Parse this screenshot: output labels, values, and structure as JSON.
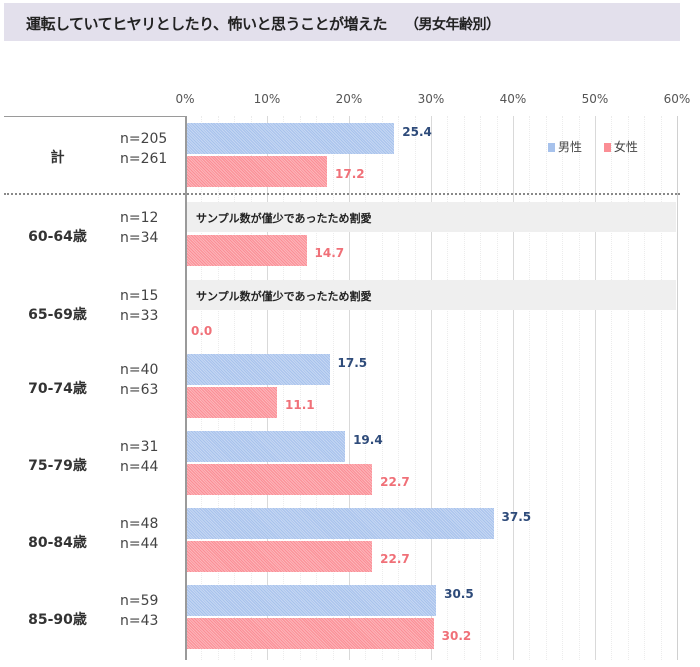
{
  "title": "運転していてヒヤリとしたり、怖いと思うことが増えた",
  "subtitle": "（男女年齢別）",
  "legend": [
    {
      "label": "男性",
      "color": "#a7c2ec"
    },
    {
      "label": "女性",
      "color": "#fb8e95"
    }
  ],
  "omit_note": "サンプル数が僅少であったため割愛",
  "chart_data": {
    "type": "bar",
    "orientation": "horizontal",
    "title": "運転していてヒヤリとしたり、怖いと思うことが増えた（男女年齢別）",
    "xlabel": "",
    "ylabel": "",
    "xlim": [
      0,
      60
    ],
    "x_ticks": [
      "0%",
      "10%",
      "20%",
      "30%",
      "40%",
      "50%",
      "60%"
    ],
    "grid": true,
    "legend_position": "top-right inside",
    "categories": [
      "計",
      "60-64歳",
      "65-69歳",
      "70-74歳",
      "75-79歳",
      "80-84歳",
      "85-90歳"
    ],
    "series": [
      {
        "name": "男性",
        "color": "#a7c2ec",
        "n": [
          "n=205",
          "n=12",
          "n=15",
          "n=40",
          "n=31",
          "n=48",
          "n=59"
        ],
        "values": [
          25.4,
          null,
          null,
          17.5,
          19.4,
          37.5,
          30.5
        ],
        "labels": [
          "25.4",
          "",
          "",
          "17.5",
          "19.4",
          "37.5",
          "30.5"
        ]
      },
      {
        "name": "女性",
        "color": "#fb8e95",
        "n": [
          "n=261",
          "n=34",
          "n=33",
          "n=63",
          "n=44",
          "n=44",
          "n=43"
        ],
        "values": [
          17.2,
          14.7,
          0.0,
          11.1,
          22.7,
          22.7,
          30.2
        ],
        "labels": [
          "17.2",
          "14.7",
          "0.0",
          "11.1",
          "22.7",
          "22.7",
          "30.2"
        ]
      }
    ],
    "annotations": [
      {
        "category": "60-64歳",
        "series": "男性",
        "text": "サンプル数が僅少であったため割愛"
      },
      {
        "category": "65-69歳",
        "series": "男性",
        "text": "サンプル数が僅少であったため割愛"
      }
    ]
  }
}
